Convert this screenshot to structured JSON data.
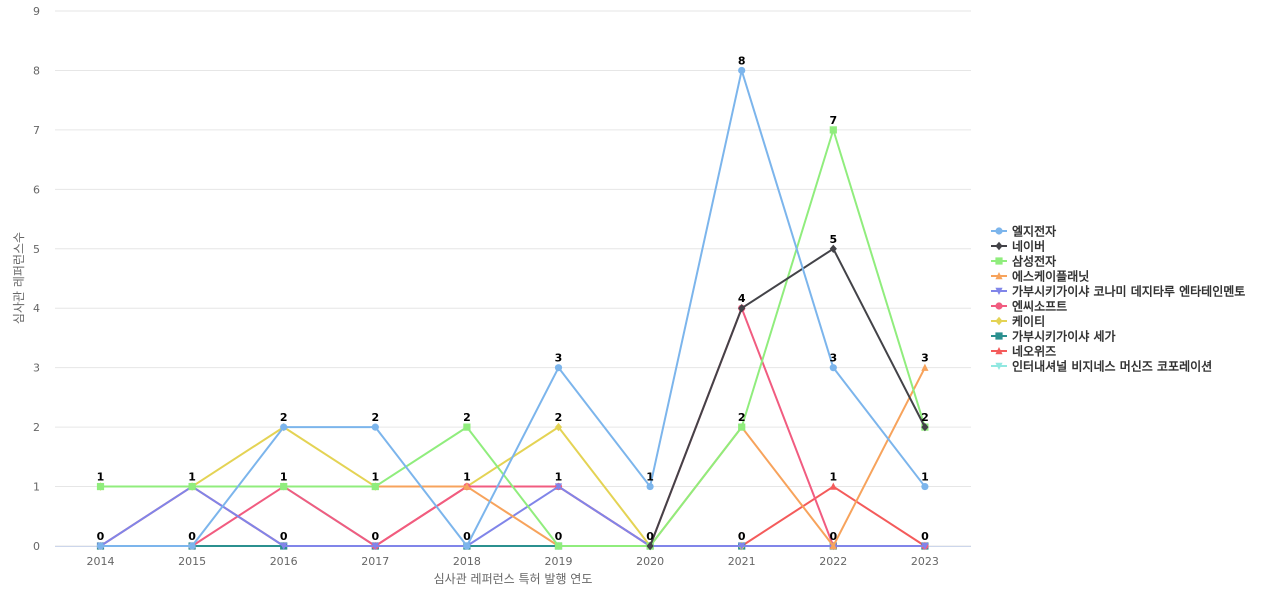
{
  "chart_data": {
    "type": "line",
    "xlabel": "심사관 레퍼런스 특허 발행 연도",
    "ylabel": "심사관 레퍼런스수",
    "ylim": [
      0,
      9
    ],
    "grid": true,
    "legend_position": "right",
    "x": [
      "2014",
      "2015",
      "2016",
      "2017",
      "2018",
      "2019",
      "2020",
      "2021",
      "2022",
      "2023"
    ],
    "yticks": [
      "0",
      "1",
      "2",
      "3",
      "4",
      "5",
      "6",
      "7",
      "8",
      "9"
    ],
    "series": [
      {
        "name": "엘지전자",
        "color": "#7cb5ec",
        "marker": "circle",
        "values": [
          0,
          0,
          2,
          2,
          0,
          3,
          1,
          8,
          3,
          1
        ]
      },
      {
        "name": "네이버",
        "color": "#434348",
        "marker": "diamond",
        "values": [
          null,
          null,
          null,
          null,
          null,
          null,
          0,
          4,
          5,
          2
        ]
      },
      {
        "name": "삼성전자",
        "color": "#90ed7d",
        "marker": "square",
        "values": [
          1,
          1,
          1,
          1,
          2,
          0,
          0,
          2,
          7,
          2
        ]
      },
      {
        "name": "에스케이플래닛",
        "color": "#f7a35c",
        "marker": "triangle",
        "values": [
          1,
          1,
          1,
          1,
          1,
          0,
          0,
          2,
          0,
          3
        ]
      },
      {
        "name": "가부시키가이샤 코나미 데지타루 엔타테인멘토",
        "color": "#8085e9",
        "marker": "triangle-down",
        "values": [
          0,
          1,
          0,
          0,
          0,
          1,
          0,
          0,
          0,
          0
        ]
      },
      {
        "name": "엔씨소프트",
        "color": "#f15c80",
        "marker": "circle",
        "values": [
          0,
          0,
          1,
          0,
          1,
          1,
          0,
          4,
          0,
          0
        ]
      },
      {
        "name": "케이티",
        "color": "#e4d354",
        "marker": "diamond",
        "values": [
          1,
          1,
          2,
          1,
          1,
          2,
          0,
          0,
          0,
          0
        ]
      },
      {
        "name": "가부시키가이샤 세가",
        "color": "#2b908f",
        "marker": "square",
        "values": [
          0,
          0,
          0,
          0,
          0,
          0,
          0,
          0,
          0,
          0
        ]
      },
      {
        "name": "네오위즈",
        "color": "#f45b5b",
        "marker": "triangle",
        "values": [
          0,
          1,
          0,
          0,
          1,
          1,
          0,
          0,
          1,
          0
        ]
      },
      {
        "name": "인터내셔널 비지네스 머신즈 코포레이션",
        "color": "#91e8e1",
        "marker": "triangle-down",
        "values": [
          1,
          1,
          1,
          0,
          0,
          0,
          0,
          0,
          0,
          0
        ]
      }
    ],
    "data_labels": [
      {
        "x": "2014",
        "value": 1
      },
      {
        "x": "2014",
        "value": 0
      },
      {
        "x": "2015",
        "value": 1
      },
      {
        "x": "2015",
        "value": 0
      },
      {
        "x": "2016",
        "value": 2
      },
      {
        "x": "2016",
        "value": 1
      },
      {
        "x": "2016",
        "value": 0
      },
      {
        "x": "2017",
        "value": 2
      },
      {
        "x": "2017",
        "value": 1
      },
      {
        "x": "2017",
        "value": 0
      },
      {
        "x": "2018",
        "value": 2
      },
      {
        "x": "2018",
        "value": 1
      },
      {
        "x": "2018",
        "value": 0
      },
      {
        "x": "2019",
        "value": 3
      },
      {
        "x": "2019",
        "value": 2
      },
      {
        "x": "2019",
        "value": 1
      },
      {
        "x": "2019",
        "value": 0
      },
      {
        "x": "2020",
        "value": 1
      },
      {
        "x": "2020",
        "value": 0
      },
      {
        "x": "2021",
        "value": 8
      },
      {
        "x": "2021",
        "value": 4
      },
      {
        "x": "2021",
        "value": 2
      },
      {
        "x": "2021",
        "value": 0
      },
      {
        "x": "2022",
        "value": 7
      },
      {
        "x": "2022",
        "value": 5
      },
      {
        "x": "2022",
        "value": 3
      },
      {
        "x": "2022",
        "value": 1
      },
      {
        "x": "2022",
        "value": 0
      },
      {
        "x": "2023",
        "value": 3
      },
      {
        "x": "2023",
        "value": 2
      },
      {
        "x": "2023",
        "value": 1
      },
      {
        "x": "2023",
        "value": 0
      }
    ]
  }
}
